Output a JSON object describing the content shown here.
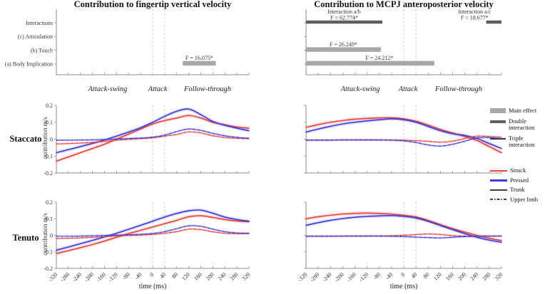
{
  "figure": {
    "titles": {
      "left": "Contribution to fingertip vertical velocity",
      "right": "Contribution to MCPJ anteroposterior velocity"
    },
    "row_labels": {
      "staccato": "Staccato",
      "tenuto": "Tenuto"
    },
    "phase_labels": {
      "attack_swing": "Attack-swing",
      "attack": "Attack",
      "follow_through": "Follow-through"
    },
    "axis": {
      "ylabel": "contribution m/s",
      "xlabel": "time (ms)"
    }
  },
  "legend_effects": [
    {
      "label": "Main effect",
      "key": "main"
    },
    {
      "label": "Double interaction",
      "key": "double"
    },
    {
      "label": "Triple interaction",
      "key": "triple"
    }
  ],
  "legend_series": [
    {
      "label": "Struck",
      "key": "struck"
    },
    {
      "label": "Pressed",
      "key": "pressed"
    },
    {
      "label": "Trunk",
      "key": "trunk"
    },
    {
      "label": "Upper limb",
      "key": "upper"
    }
  ],
  "colors": {
    "struck": "#ee4037",
    "pressed": "#3a3ae0",
    "trunk": "#404040",
    "bar_main": "#a8a8a8",
    "bar_double": "#5e5e5e",
    "phase_line": "#c9c9c9",
    "axis": "#8c8c8c",
    "tick_text": "#333333"
  },
  "chart_data": {
    "type": "line",
    "x_ms": [
      -320,
      -280,
      -240,
      -200,
      -160,
      -120,
      -80,
      -40,
      0,
      40,
      80,
      120,
      160,
      200,
      240,
      280,
      320
    ],
    "xticks": [
      -320,
      -280,
      -240,
      -200,
      -160,
      -120,
      -80,
      -40,
      0,
      40,
      80,
      120,
      160,
      200,
      240,
      280,
      320
    ],
    "yticks": [
      0.2,
      0.1,
      0,
      -0.1,
      -0.2
    ],
    "xlim": [
      -320,
      320
    ],
    "ylim": [
      -0.2,
      0.2
    ],
    "phase_boundaries_ms": [
      0,
      40
    ],
    "significance_panels": [
      {
        "id": "fingertip",
        "title": "Contribution to fingertip vertical velocity",
        "rows": [
          "Interactions",
          "(c) Articulation",
          "(b) Touch",
          "(a) Body Implication"
        ],
        "show_row_labels": true,
        "bars": [
          {
            "row": 3,
            "from_ms": 100,
            "to_ms": 210,
            "label": "F = 16.075*",
            "effect": "main"
          }
        ]
      },
      {
        "id": "mcpj",
        "title": "Contribution to MCPJ anteroposterior velocity",
        "rows": [
          "Interactions",
          "(c) Articulation",
          "(b) Touch",
          "(a) Body Implication"
        ],
        "show_row_labels": false,
        "bars": [
          {
            "row": 0,
            "from_ms": -320,
            "to_ms": -70,
            "label": "Interaction a/b\nF = 62.774*",
            "effect": "double"
          },
          {
            "row": 0,
            "from_ms": 270,
            "to_ms": 320,
            "label": "Interaction a/c\nF = 18.677*",
            "effect": "double",
            "label_at_ms": 232
          },
          {
            "row": 2,
            "from_ms": -320,
            "to_ms": -75,
            "label": "F = 26.249*",
            "effect": "main"
          },
          {
            "row": 3,
            "from_ms": -320,
            "to_ms": 100,
            "label": "F = 24.212*",
            "effect": "main",
            "label_at_ms": -80
          }
        ]
      }
    ],
    "line_plots": [
      {
        "id": "staccato-fingertip",
        "articulation": "Staccato",
        "measure": "fingertip vertical velocity",
        "series": [
          {
            "name": "Struck - Trunk",
            "color": "struck",
            "line": "solid",
            "values": [
              -0.13,
              -0.105,
              -0.08,
              -0.055,
              -0.03,
              0.0,
              0.03,
              0.06,
              0.09,
              0.11,
              0.125,
              0.14,
              0.125,
              0.1,
              0.085,
              0.072,
              0.065
            ]
          },
          {
            "name": "Pressed - Trunk",
            "color": "pressed",
            "line": "solid",
            "values": [
              -0.08,
              -0.062,
              -0.044,
              -0.025,
              -0.005,
              0.018,
              0.042,
              0.068,
              0.1,
              0.135,
              0.165,
              0.178,
              0.145,
              0.105,
              0.082,
              0.065,
              0.05
            ]
          },
          {
            "name": "Struck - Upper limb",
            "color": "struck",
            "line": "dashdot",
            "values": [
              -0.028,
              -0.026,
              -0.023,
              -0.019,
              -0.013,
              -0.006,
              -0.001,
              0.003,
              0.008,
              0.018,
              0.028,
              0.043,
              0.037,
              0.02,
              0.01,
              0.005,
              0.003
            ]
          },
          {
            "name": "Pressed - Upper limb",
            "color": "pressed",
            "line": "dashdot",
            "values": [
              -0.006,
              -0.006,
              -0.005,
              -0.004,
              -0.002,
              0.001,
              0.004,
              0.007,
              0.012,
              0.024,
              0.045,
              0.06,
              0.052,
              0.034,
              0.02,
              0.011,
              0.005
            ]
          }
        ]
      },
      {
        "id": "staccato-mcpj",
        "articulation": "Staccato",
        "measure": "MCPJ anteroposterior velocity",
        "series": [
          {
            "name": "Struck - Trunk",
            "color": "struck",
            "line": "solid",
            "values": [
              0.07,
              0.086,
              0.1,
              0.11,
              0.118,
              0.123,
              0.126,
              0.126,
              0.12,
              0.106,
              0.083,
              0.058,
              0.036,
              0.016,
              -0.008,
              -0.044,
              -0.08
            ]
          },
          {
            "name": "Pressed - Trunk",
            "color": "pressed",
            "line": "solid",
            "values": [
              0.042,
              0.06,
              0.076,
              0.09,
              0.1,
              0.108,
              0.115,
              0.12,
              0.115,
              0.1,
              0.075,
              0.05,
              0.032,
              0.022,
              0.004,
              -0.026,
              -0.055
            ]
          },
          {
            "name": "Struck - Upper limb",
            "color": "struck",
            "line": "dashdot",
            "values": [
              -0.005,
              -0.005,
              -0.005,
              -0.004,
              -0.004,
              -0.004,
              -0.004,
              -0.005,
              -0.006,
              -0.009,
              -0.013,
              -0.018,
              -0.012,
              0.004,
              0.018,
              0.016,
              0.012
            ]
          },
          {
            "name": "Pressed - Upper limb",
            "color": "pressed",
            "line": "dashdot",
            "values": [
              -0.006,
              -0.006,
              -0.006,
              -0.005,
              -0.005,
              -0.005,
              -0.005,
              -0.006,
              -0.01,
              -0.02,
              -0.034,
              -0.041,
              -0.03,
              -0.012,
              0.008,
              0.009,
              0.004
            ]
          }
        ]
      },
      {
        "id": "tenuto-fingertip",
        "articulation": "Tenuto",
        "measure": "fingertip vertical velocity",
        "series": [
          {
            "name": "Struck - Trunk",
            "color": "struck",
            "line": "solid",
            "values": [
              -0.11,
              -0.093,
              -0.075,
              -0.056,
              -0.035,
              -0.012,
              0.01,
              0.03,
              0.05,
              0.07,
              0.09,
              0.112,
              0.118,
              0.108,
              0.095,
              0.086,
              0.082
            ]
          },
          {
            "name": "Pressed - Trunk",
            "color": "pressed",
            "line": "solid",
            "values": [
              -0.09,
              -0.071,
              -0.051,
              -0.031,
              -0.01,
              0.012,
              0.036,
              0.06,
              0.085,
              0.11,
              0.132,
              0.148,
              0.152,
              0.133,
              0.11,
              0.095,
              0.085
            ]
          },
          {
            "name": "Struck - Upper limb",
            "color": "struck",
            "line": "dashdot",
            "values": [
              -0.02,
              -0.018,
              -0.016,
              -0.012,
              -0.008,
              -0.004,
              -0.001,
              0.001,
              0.005,
              0.012,
              0.022,
              0.037,
              0.034,
              0.021,
              0.012,
              0.01,
              0.01
            ]
          },
          {
            "name": "Pressed - Upper limb",
            "color": "pressed",
            "line": "dashdot",
            "values": [
              -0.006,
              -0.006,
              -0.005,
              -0.003,
              -0.001,
              0.001,
              0.003,
              0.006,
              0.011,
              0.022,
              0.04,
              0.057,
              0.054,
              0.037,
              0.022,
              0.014,
              0.012
            ]
          }
        ]
      },
      {
        "id": "tenuto-mcpj",
        "articulation": "Tenuto",
        "measure": "MCPJ anteroposterior velocity",
        "series": [
          {
            "name": "Struck - Trunk",
            "color": "struck",
            "line": "solid",
            "values": [
              0.1,
              0.112,
              0.121,
              0.128,
              0.132,
              0.134,
              0.132,
              0.128,
              0.121,
              0.111,
              0.09,
              0.064,
              0.04,
              0.019,
              -0.001,
              -0.018,
              -0.032
            ]
          },
          {
            "name": "Pressed - Trunk",
            "color": "pressed",
            "line": "solid",
            "values": [
              0.06,
              0.076,
              0.09,
              0.101,
              0.109,
              0.114,
              0.117,
              0.119,
              0.114,
              0.104,
              0.084,
              0.059,
              0.034,
              0.01,
              -0.012,
              -0.029,
              -0.042
            ]
          },
          {
            "name": "Struck - Upper limb",
            "color": "struck",
            "line": "dashdot",
            "values": [
              -0.005,
              -0.005,
              -0.005,
              -0.005,
              -0.004,
              -0.004,
              -0.004,
              -0.003,
              0.0,
              0.004,
              0.008,
              0.005,
              -0.002,
              -0.005,
              -0.006,
              -0.005,
              -0.004
            ]
          },
          {
            "name": "Pressed - Upper limb",
            "color": "pressed",
            "line": "dashdot",
            "values": [
              -0.006,
              -0.006,
              -0.006,
              -0.005,
              -0.005,
              -0.005,
              -0.005,
              -0.006,
              -0.008,
              -0.011,
              -0.014,
              -0.016,
              -0.012,
              -0.008,
              -0.006,
              -0.005,
              -0.005
            ]
          }
        ]
      }
    ]
  }
}
